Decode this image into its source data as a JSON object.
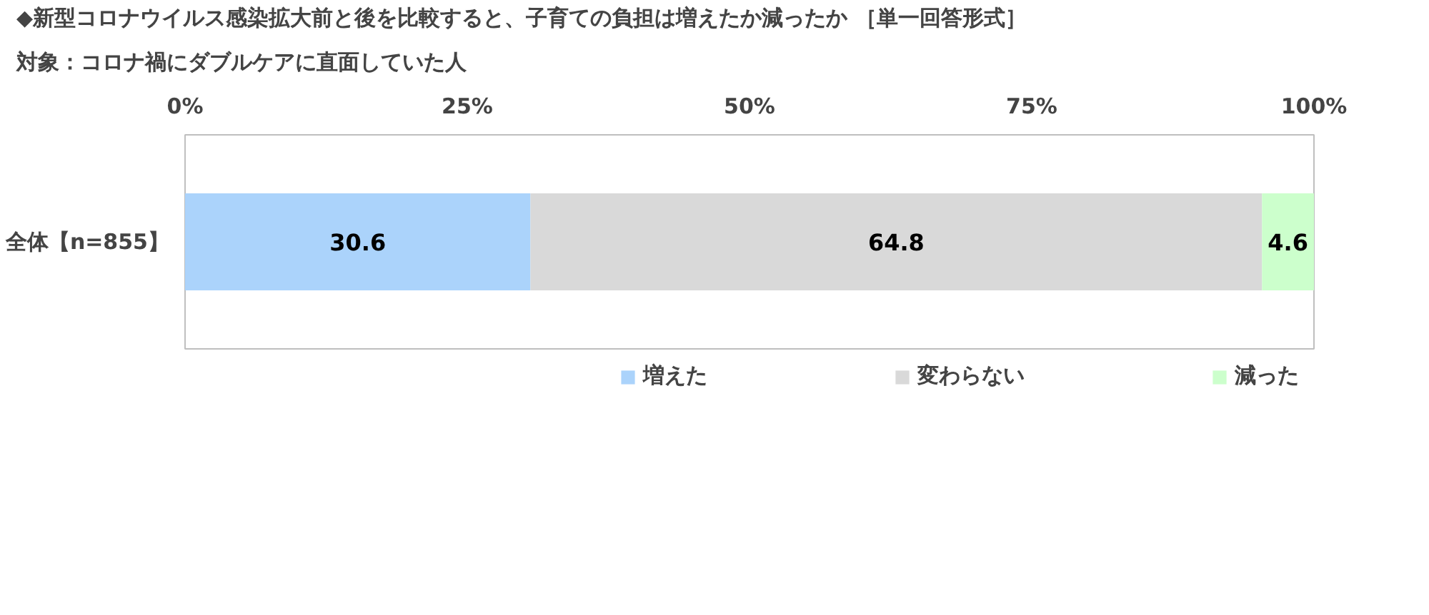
{
  "chart_data": {
    "type": "bar",
    "orientation": "horizontal",
    "stacked": true,
    "title": "◆新型コロナウイルス感染拡大前と後を比較すると、子育ての負担は増えたか減ったか ［単一回答形式］",
    "subtitle": "対象：コロナ禍にダブルケアに直面していた人",
    "categories": [
      "全体【n=855】"
    ],
    "series": [
      {
        "name": "増えた",
        "color": "#abd3fb",
        "values": [
          30.6
        ]
      },
      {
        "name": "変わらない",
        "color": "#d9d9d9",
        "values": [
          64.8
        ]
      },
      {
        "name": "減った",
        "color": "#ccffcc",
        "values": [
          4.6
        ]
      }
    ],
    "xlim": [
      0,
      100
    ],
    "xticks": [
      {
        "value": 0,
        "label": "0%"
      },
      {
        "value": 25,
        "label": "25%"
      },
      {
        "value": 50,
        "label": "50%"
      },
      {
        "value": 75,
        "label": "75%"
      },
      {
        "value": 100,
        "label": "100%"
      }
    ],
    "data_labels": true,
    "legend": "bottom",
    "grid": false
  }
}
